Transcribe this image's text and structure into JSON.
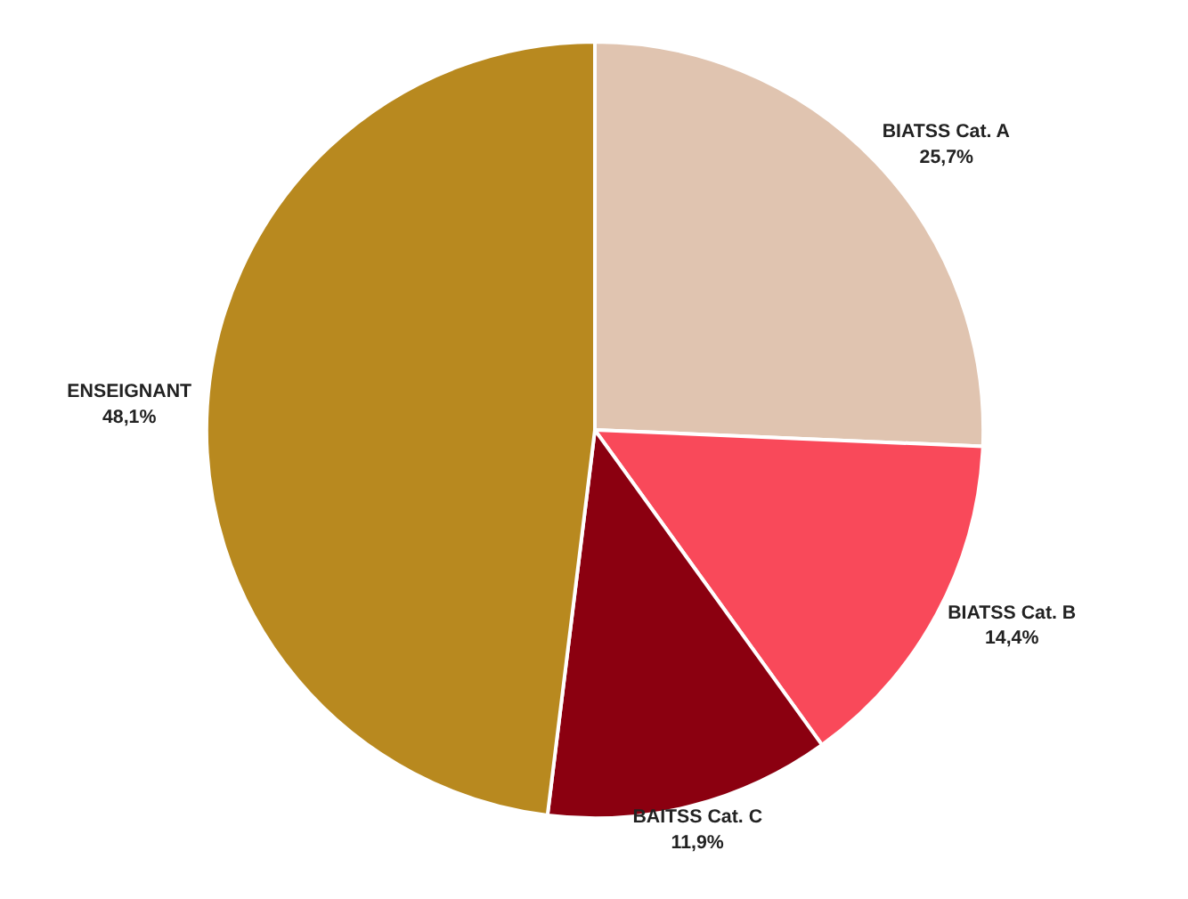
{
  "chart_data": {
    "type": "pie",
    "categories": [
      "BIATSS Cat. A",
      "BIATSS Cat. B",
      "BAITSS Cat. C",
      "ENSEIGNANT"
    ],
    "values": [
      25.7,
      14.4,
      11.9,
      48.1
    ],
    "value_labels": [
      "25,7%",
      "14,4%",
      "11,9%",
      "48,1%"
    ],
    "colors": [
      "#e0c4b0",
      "#f9495a",
      "#8b0010",
      "#b8891f"
    ],
    "legend": false
  }
}
